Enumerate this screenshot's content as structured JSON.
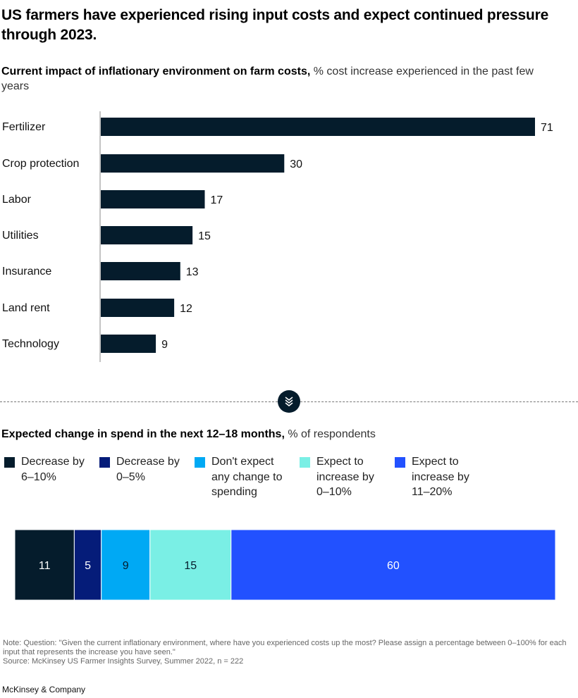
{
  "title": "US farmers have experienced rising input costs and expect continued pressure through 2023.",
  "chart_data": [
    {
      "type": "bar",
      "orientation": "horizontal",
      "title": "Current impact of inflationary environment on farm costs,",
      "subtitle": "% cost increase experienced in the past few years",
      "categories": [
        "Fertilizer",
        "Crop protection",
        "Labor",
        "Utilities",
        "Insurance",
        "Land rent",
        "Technology"
      ],
      "values": [
        71,
        30,
        17,
        15,
        13,
        12,
        9
      ],
      "xlabel": "",
      "ylabel": "",
      "xlim": [
        0,
        71
      ],
      "bar_color": "#051c2c",
      "grid": false
    },
    {
      "type": "bar",
      "orientation": "horizontal-stacked-100",
      "title": "Expected change in spend in the next 12–18 months,",
      "subtitle": "% of respondents",
      "legend_position": "top",
      "series": [
        {
          "name": "Decrease by 6–10%",
          "value": 11,
          "color": "#051c2c",
          "text_color": "#ffffff"
        },
        {
          "name": "Decrease by 0–5%",
          "value": 5,
          "color": "#051c79",
          "text_color": "#ffffff"
        },
        {
          "name": "Don't expect any change to spending",
          "value": 9,
          "color": "#00a9f4",
          "text_color": "#051c2c"
        },
        {
          "name": "Expect to increase by 0–10%",
          "value": 15,
          "color": "#7aefe5",
          "text_color": "#051c2c"
        },
        {
          "name": "Expect to increase by 11–20%",
          "value": 60,
          "color": "#2251ff",
          "text_color": "#ffffff"
        }
      ]
    }
  ],
  "legend_lines": [
    [
      "Decrease by",
      "6–10%"
    ],
    [
      "Decrease by",
      "0–5%"
    ],
    [
      "Don't expect",
      "any change to",
      "spending"
    ],
    [
      "Expect to",
      "increase by",
      "0–10%"
    ],
    [
      "Expect to",
      "increase by",
      "11–20%"
    ]
  ],
  "divider": {
    "icon": "double-chevron-down-icon"
  },
  "note": "Note: Question: \"Given the current inflationary environment, where have you experienced costs up the most? Please assign a percentage between 0–100% for each input that represents the increase you have seen.\"",
  "source": "Source: McKinsey US Farmer Insights Survey, Summer 2022, n = 222",
  "brand": "McKinsey & Company"
}
